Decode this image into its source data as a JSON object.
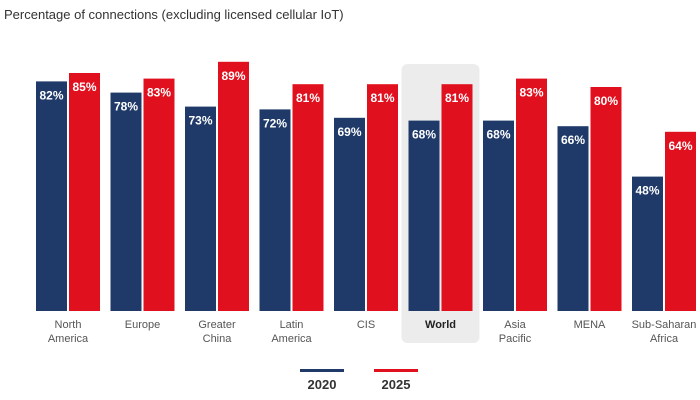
{
  "chart_data": {
    "type": "bar",
    "title": "Percentage of connections (excluding licensed cellular IoT)",
    "categories": [
      [
        "North",
        "America"
      ],
      [
        "Europe"
      ],
      [
        "Greater",
        "China"
      ],
      [
        "Latin",
        "America"
      ],
      [
        "CIS"
      ],
      [
        "World"
      ],
      [
        "Asia",
        "Pacific"
      ],
      [
        "MENA"
      ],
      [
        "Sub-Saharan",
        "Africa"
      ]
    ],
    "highlight_category": "World",
    "series": [
      {
        "name": "2020",
        "color": "#1f3a68",
        "values": [
          82,
          78,
          73,
          72,
          69,
          68,
          68,
          66,
          48
        ],
        "labels": [
          "82%",
          "78%",
          "73%",
          "72%",
          "69%",
          "68%",
          "68%",
          "66%",
          "48%"
        ]
      },
      {
        "name": "2025",
        "color": "#e0101e",
        "values": [
          85,
          83,
          89,
          81,
          81,
          81,
          83,
          80,
          64
        ],
        "labels": [
          "85%",
          "83%",
          "89%",
          "81%",
          "81%",
          "81%",
          "83%",
          "80%",
          "64%"
        ]
      }
    ],
    "ylim": [
      0,
      100
    ],
    "xlabel": "",
    "ylabel": "",
    "grid": false,
    "legend_position": "bottom-center"
  }
}
